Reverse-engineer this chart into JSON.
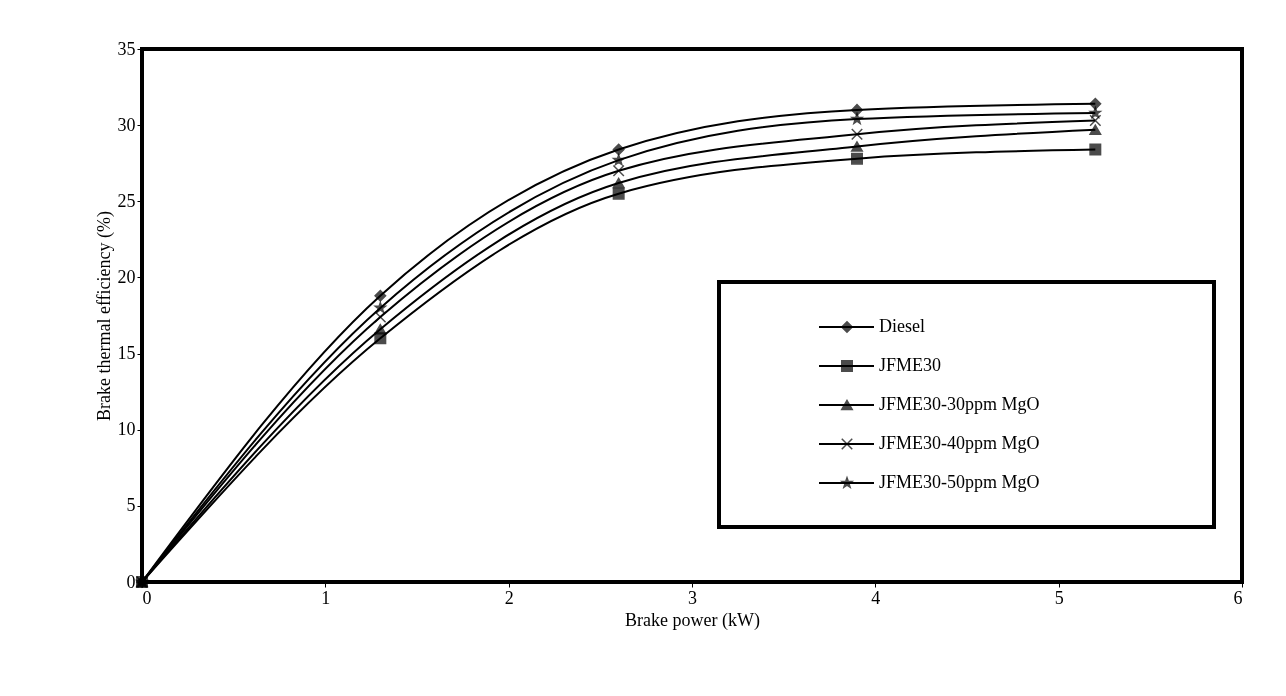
{
  "chart_data": {
    "type": "line",
    "xlabel": "Brake power (kW)",
    "ylabel": "Brake thermal efficiency (%)",
    "x": [
      0,
      1.3,
      2.6,
      3.9,
      5.2
    ],
    "series": [
      {
        "name": "Diesel",
        "color": "#000000",
        "marker": "diamond",
        "values": [
          0,
          18.8,
          28.4,
          31.0,
          31.4
        ]
      },
      {
        "name": "JFME30",
        "color": "#000000",
        "marker": "square",
        "values": [
          0,
          16.0,
          25.5,
          27.8,
          28.4
        ]
      },
      {
        "name": "JFME30-30ppm MgO",
        "color": "#000000",
        "marker": "triangle",
        "values": [
          0,
          16.6,
          26.2,
          28.6,
          29.7
        ]
      },
      {
        "name": "JFME30-40ppm MgO",
        "color": "#000000",
        "marker": "cross",
        "values": [
          0,
          17.4,
          27.0,
          29.4,
          30.3
        ]
      },
      {
        "name": "JFME30-50ppm MgO",
        "color": "#000000",
        "marker": "star",
        "values": [
          0,
          18.0,
          27.7,
          30.4,
          30.8
        ]
      }
    ],
    "xlim": [
      0,
      6
    ],
    "xticks": [
      0,
      1,
      2,
      3,
      4,
      5,
      6
    ],
    "ylim": [
      0,
      35
    ],
    "yticks": [
      0,
      5,
      10,
      15,
      20,
      25,
      30,
      35
    ],
    "grid": false,
    "legend": "bottom right",
    "line_style": "solid"
  }
}
